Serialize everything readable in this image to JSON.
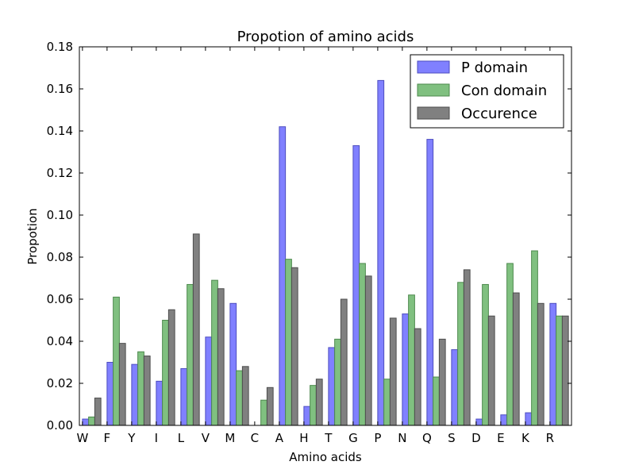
{
  "chart_data": {
    "type": "bar",
    "title": "Propotion of amino acids",
    "xlabel": "Amino acids",
    "ylabel": "Propotion",
    "ylim": [
      0,
      0.18
    ],
    "yticks": [
      0.0,
      0.02,
      0.04,
      0.06,
      0.08,
      0.1,
      0.12,
      0.14,
      0.16,
      0.18
    ],
    "ytick_labels": [
      "0.00",
      "0.02",
      "0.04",
      "0.06",
      "0.08",
      "0.10",
      "0.12",
      "0.14",
      "0.16",
      "0.18"
    ],
    "legend_position": "top-right",
    "grid": false,
    "categories": [
      "W",
      "F",
      "Y",
      "I",
      "L",
      "V",
      "M",
      "C",
      "A",
      "H",
      "T",
      "G",
      "P",
      "N",
      "Q",
      "S",
      "D",
      "E",
      "K",
      "R"
    ],
    "series": [
      {
        "name": "P domain",
        "color": "#8080ff",
        "edge": "#4d4dbf",
        "values": [
          0.003,
          0.03,
          0.029,
          0.021,
          0.027,
          0.042,
          0.058,
          0.0,
          0.142,
          0.009,
          0.037,
          0.133,
          0.164,
          0.053,
          0.136,
          0.036,
          0.003,
          0.005,
          0.006,
          0.058
        ]
      },
      {
        "name": "Con domain",
        "color": "#80c080",
        "edge": "#4d8a4d",
        "values": [
          0.004,
          0.061,
          0.035,
          0.05,
          0.067,
          0.069,
          0.026,
          0.012,
          0.079,
          0.019,
          0.041,
          0.077,
          0.022,
          0.062,
          0.023,
          0.068,
          0.067,
          0.077,
          0.083,
          0.052
        ]
      },
      {
        "name": "Occurence",
        "color": "#808080",
        "edge": "#4d4d4d",
        "values": [
          0.013,
          0.039,
          0.033,
          0.055,
          0.091,
          0.065,
          0.028,
          0.018,
          0.075,
          0.022,
          0.06,
          0.071,
          0.051,
          0.046,
          0.041,
          0.074,
          0.052,
          0.063,
          0.058,
          0.052
        ]
      }
    ]
  }
}
